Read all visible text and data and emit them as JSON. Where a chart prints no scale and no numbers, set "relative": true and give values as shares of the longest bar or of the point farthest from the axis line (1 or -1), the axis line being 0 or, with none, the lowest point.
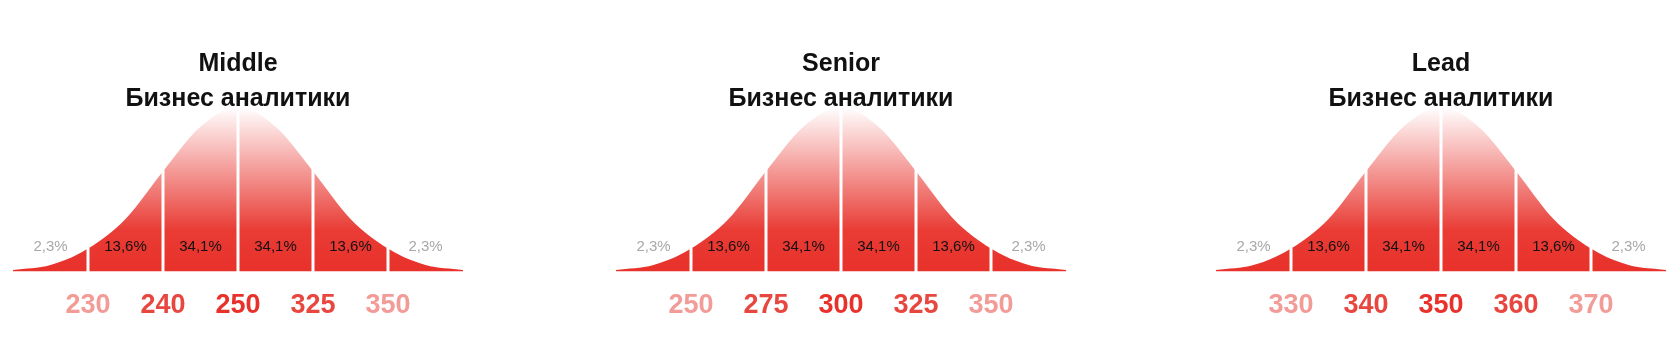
{
  "chart_data": [
    {
      "type": "area",
      "relative": true,
      "title": "Middle",
      "subtitle": "Бизнес аналитики",
      "color": "#e8312a",
      "categories": [
        null,
        null,
        "230",
        null,
        "240",
        null,
        "250",
        null,
        "325",
        null,
        "350",
        null,
        null
      ],
      "values": [
        0.01,
        0.04,
        0.14,
        0.32,
        0.61,
        0.88,
        1,
        0.88,
        0.61,
        0.32,
        0.14,
        0.04,
        0.01
      ],
      "annotations": [
        "2,3%",
        "13,6%",
        "34,1%",
        "34,1%",
        "13,6%",
        "2,3%"
      ]
    },
    {
      "type": "area",
      "relative": true,
      "title": "Senior",
      "subtitle": "Бизнес аналитики",
      "color": "#e8312a",
      "categories": [
        null,
        null,
        "250",
        null,
        "275",
        null,
        "300",
        null,
        "325",
        null,
        "350",
        null,
        null
      ],
      "values": [
        0.01,
        0.04,
        0.14,
        0.32,
        0.61,
        0.88,
        1,
        0.88,
        0.61,
        0.32,
        0.14,
        0.04,
        0.01
      ],
      "annotations": [
        "2,3%",
        "13,6%",
        "34,1%",
        "34,1%",
        "13,6%",
        "2,3%"
      ]
    },
    {
      "type": "area",
      "relative": true,
      "title": "Lead",
      "subtitle": "Бизнес аналитики",
      "color": "#e8312a",
      "categories": [
        null,
        null,
        "330",
        null,
        "340",
        null,
        "350",
        null,
        "360",
        null,
        "370",
        null,
        null
      ],
      "values": [
        0.01,
        0.04,
        0.14,
        0.32,
        0.61,
        0.88,
        1,
        0.88,
        0.61,
        0.32,
        0.14,
        0.04,
        0.01
      ],
      "annotations": [
        "2,3%",
        "13,6%",
        "34,1%",
        "34,1%",
        "13,6%",
        "2,3%"
      ]
    }
  ]
}
